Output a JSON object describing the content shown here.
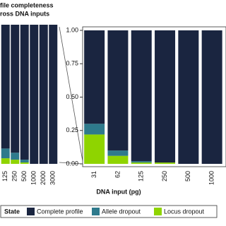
{
  "chart_data": [
    {
      "type": "stacked_bar",
      "title": [
        "file completeness",
        "ross DNA inputs"
      ],
      "categories": [
        "125",
        "250",
        "500",
        "1000",
        "2000",
        "3000"
      ],
      "ylim": [
        0,
        1
      ],
      "series": [
        {
          "color": "#8fd400",
          "values": [
            0.04,
            0.03,
            0.01,
            0,
            0,
            0
          ]
        },
        {
          "color": "#2e7a8c",
          "values": [
            0.07,
            0.05,
            0.02,
            0,
            0,
            0
          ]
        },
        {
          "color": "#1a2540",
          "values": [
            0.89,
            0.92,
            0.97,
            1,
            1,
            1
          ]
        }
      ]
    },
    {
      "type": "stacked_bar",
      "xlabel": "DNA input (pg)",
      "legend_title": "State",
      "categories": [
        "31",
        "62",
        "125",
        "250",
        "500",
        "1000"
      ],
      "ylim": [
        0,
        1
      ],
      "yticks": [
        {
          "value": 0,
          "label": "0.00"
        },
        0.25,
        {
          "value": 0.5,
          "label": "0.50"
        },
        0.75,
        {
          "value": 1,
          "label": "1.00"
        }
      ],
      "series": [
        {
          "name": "Locus dropout",
          "color": "#8fd400",
          "values": [
            0.22,
            0.06,
            0.01,
            0.01,
            0,
            0
          ]
        },
        {
          "name": "Allele dropout",
          "color": "#2e7a8c",
          "values": [
            0.08,
            0.04,
            0.01,
            0,
            0,
            0
          ]
        },
        {
          "name": "Complete profile",
          "color": "#1a2540",
          "values": [
            0.7,
            0.9,
            0.98,
            0.99,
            1,
            1
          ]
        }
      ]
    }
  ]
}
